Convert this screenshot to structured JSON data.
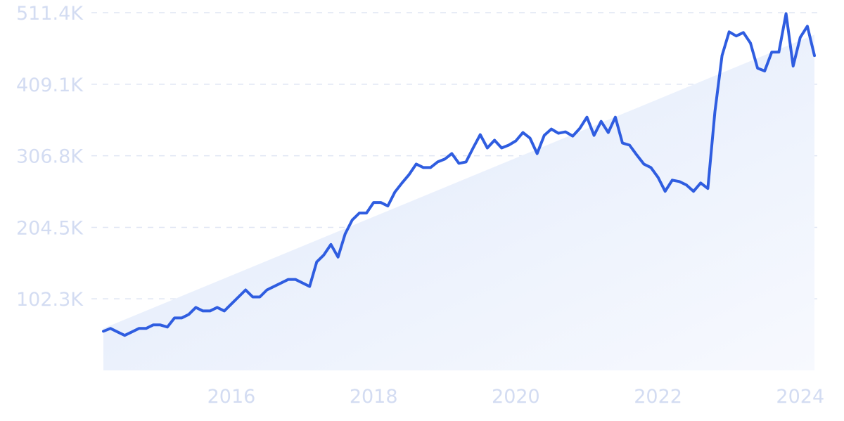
{
  "chart_data": {
    "type": "line",
    "title": "",
    "xlabel": "",
    "ylabel": "",
    "x_ticks": [
      "2016",
      "2018",
      "2020",
      "2022",
      "2024"
    ],
    "y_ticks": [
      "102.3K",
      "204.5K",
      "306.8K",
      "409.1K",
      "511.4K"
    ],
    "ylim": [
      0,
      511400
    ],
    "xlim": [
      2014.2,
      2024.2
    ],
    "grid": true,
    "colors": {
      "line": "#2f5de0",
      "fill": "#e3edfb",
      "grid": "#dfe5f3",
      "tick_label": "#d3dcf2"
    },
    "series": [
      {
        "x": [
          2014.2,
          2014.3,
          2014.4,
          2014.5,
          2014.6,
          2014.7,
          2014.8,
          2014.9,
          2015.0,
          2015.1,
          2015.2,
          2015.3,
          2015.4,
          2015.5,
          2015.6,
          2015.7,
          2015.8,
          2015.9,
          2016.0,
          2016.1,
          2016.2,
          2016.3,
          2016.4,
          2016.5,
          2016.6,
          2016.7,
          2016.8,
          2016.9,
          2017.0,
          2017.1,
          2017.2,
          2017.3,
          2017.4,
          2017.5,
          2017.6,
          2017.7,
          2017.8,
          2017.9,
          2018.0,
          2018.1,
          2018.2,
          2018.3,
          2018.4,
          2018.5,
          2018.6,
          2018.7,
          2018.8,
          2018.9,
          2019.0,
          2019.1,
          2019.2,
          2019.3,
          2019.4,
          2019.5,
          2019.6,
          2019.7,
          2019.8,
          2019.9,
          2020.0,
          2020.1,
          2020.2,
          2020.3,
          2020.4,
          2020.5,
          2020.6,
          2020.7,
          2020.8,
          2020.9,
          2021.0,
          2021.1,
          2021.2,
          2021.3,
          2021.4,
          2021.5,
          2021.6,
          2021.7,
          2021.8,
          2021.9,
          2022.0,
          2022.1,
          2022.2,
          2022.3,
          2022.4,
          2022.5,
          2022.6,
          2022.7,
          2022.8,
          2022.9,
          2023.0,
          2023.1,
          2023.2,
          2023.3,
          2023.4,
          2023.5,
          2023.6,
          2023.7,
          2023.8,
          2023.9,
          2024.0,
          2024.1,
          2024.2
        ],
        "y": [
          56000,
          60000,
          55000,
          50000,
          55000,
          60000,
          60000,
          65000,
          65000,
          62000,
          75000,
          75000,
          80000,
          90000,
          85000,
          85000,
          90000,
          85000,
          95000,
          105000,
          115000,
          105000,
          105000,
          115000,
          120000,
          125000,
          130000,
          130000,
          125000,
          120000,
          155000,
          165000,
          180000,
          162000,
          195000,
          215000,
          225000,
          225000,
          240000,
          240000,
          235000,
          255000,
          268000,
          280000,
          295000,
          290000,
          290000,
          298000,
          302000,
          310000,
          296000,
          298000,
          318000,
          337000,
          318000,
          329000,
          318000,
          322000,
          328000,
          340000,
          332000,
          310000,
          336000,
          345000,
          339000,
          341000,
          335000,
          346000,
          362000,
          336000,
          356000,
          340000,
          362000,
          325000,
          322000,
          308000,
          295000,
          290000,
          276000,
          256000,
          272000,
          270000,
          265000,
          256000,
          268000,
          260000,
          370000,
          450000,
          484000,
          478000,
          483000,
          468000,
          432000,
          428000,
          455000,
          455000,
          510000,
          435000,
          476000,
          492000,
          450000
        ],
        "line_width": 4
      }
    ]
  }
}
